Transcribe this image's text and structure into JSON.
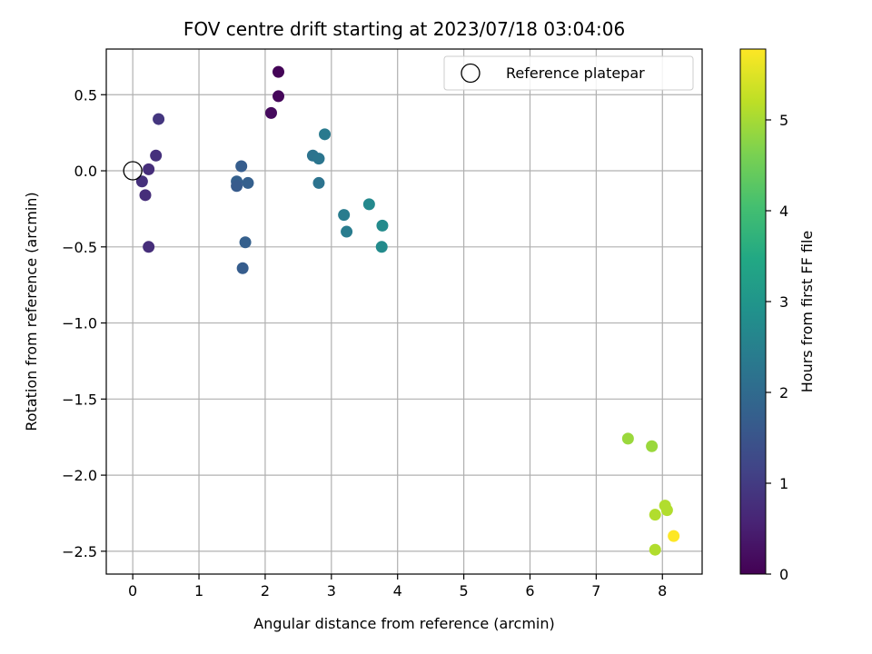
{
  "chart_data": {
    "type": "scatter",
    "title": "FOV centre drift starting at 2023/07/18 03:04:06",
    "xlabel": "Angular distance from reference (arcmin)",
    "ylabel": "Rotation from reference (arcmin)",
    "xlim": [
      -0.4,
      8.6
    ],
    "ylim": [
      -2.65,
      0.8
    ],
    "xticks": [
      0,
      1,
      2,
      3,
      4,
      5,
      6,
      7,
      8
    ],
    "yticks": [
      -2.5,
      -2.0,
      -1.5,
      -1.0,
      -0.5,
      0.0,
      0.5
    ],
    "ytick_labels": [
      "−2.5",
      "−2.0",
      "−1.5",
      "−1.0",
      "−0.5",
      "0.0",
      "0.5"
    ],
    "grid": true,
    "legend": {
      "placement": "top-right",
      "entries": [
        "Reference platepar"
      ]
    },
    "reference_point": {
      "x": 0,
      "y": 0,
      "label": "Reference platepar"
    },
    "colorbar": {
      "label": "Hours from first FF file",
      "range": [
        0,
        5.78
      ],
      "ticks": [
        0,
        1,
        2,
        3,
        4,
        5
      ],
      "colormap": "viridis"
    },
    "points": [
      {
        "x": 2.2,
        "y": 0.65,
        "hours": 0.05
      },
      {
        "x": 2.2,
        "y": 0.49,
        "hours": 0.1
      },
      {
        "x": 2.09,
        "y": 0.38,
        "hours": 0.15
      },
      {
        "x": 0.39,
        "y": 0.34,
        "hours": 0.9
      },
      {
        "x": 0.35,
        "y": 0.1,
        "hours": 0.8
      },
      {
        "x": 0.24,
        "y": 0.01,
        "hours": 0.75
      },
      {
        "x": 0.14,
        "y": -0.07,
        "hours": 0.8
      },
      {
        "x": 0.19,
        "y": -0.16,
        "hours": 0.75
      },
      {
        "x": 0.24,
        "y": -0.5,
        "hours": 0.75
      },
      {
        "x": 1.64,
        "y": 0.03,
        "hours": 1.7
      },
      {
        "x": 1.57,
        "y": -0.07,
        "hours": 1.75
      },
      {
        "x": 1.57,
        "y": -0.1,
        "hours": 1.65
      },
      {
        "x": 1.74,
        "y": -0.08,
        "hours": 1.75
      },
      {
        "x": 1.7,
        "y": -0.47,
        "hours": 1.75
      },
      {
        "x": 1.66,
        "y": -0.64,
        "hours": 1.7
      },
      {
        "x": 2.72,
        "y": 0.1,
        "hours": 2.2
      },
      {
        "x": 2.81,
        "y": 0.08,
        "hours": 2.25
      },
      {
        "x": 2.9,
        "y": 0.24,
        "hours": 2.35
      },
      {
        "x": 2.81,
        "y": -0.08,
        "hours": 2.2
      },
      {
        "x": 3.19,
        "y": -0.29,
        "hours": 2.4
      },
      {
        "x": 3.23,
        "y": -0.4,
        "hours": 2.4
      },
      {
        "x": 3.57,
        "y": -0.22,
        "hours": 2.7
      },
      {
        "x": 3.77,
        "y": -0.36,
        "hours": 2.75
      },
      {
        "x": 3.76,
        "y": -0.5,
        "hours": 2.75
      },
      {
        "x": 7.48,
        "y": -1.76,
        "hours": 4.9
      },
      {
        "x": 7.84,
        "y": -1.81,
        "hours": 4.9
      },
      {
        "x": 8.04,
        "y": -2.2,
        "hours": 5.1
      },
      {
        "x": 8.07,
        "y": -2.23,
        "hours": 5.1
      },
      {
        "x": 7.89,
        "y": -2.26,
        "hours": 5.1
      },
      {
        "x": 7.89,
        "y": -2.49,
        "hours": 5.1
      },
      {
        "x": 8.17,
        "y": -2.4,
        "hours": 5.78
      }
    ]
  }
}
